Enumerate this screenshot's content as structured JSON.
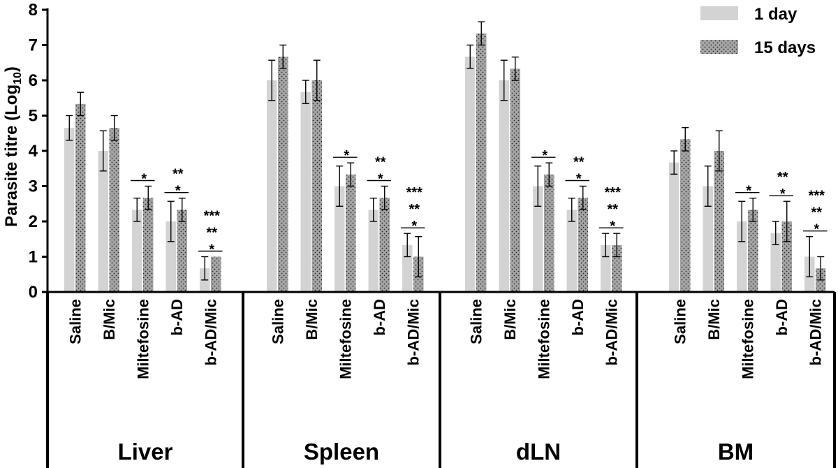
{
  "chart_data": {
    "type": "bar",
    "ylabel": "Parasite titre (Log",
    "ylabel_sub": "10",
    "ylabel_close": ")",
    "ylim": [
      0,
      8
    ],
    "yticks": [
      "0",
      "1",
      "2",
      "3",
      "4",
      "5",
      "6",
      "7",
      "8"
    ],
    "grid": false,
    "legend_position": "top-right",
    "series": [
      {
        "name": "1 day",
        "color": "#d3d3d3",
        "pattern": "solid"
      },
      {
        "name": "15 days",
        "color": "#a6a6a6",
        "pattern": "dotted"
      }
    ],
    "categories": [
      "Saline",
      "B/Mic",
      "Miltefosine",
      "b-AD",
      "b-AD/Mic"
    ],
    "groups": [
      {
        "name": "Liver",
        "bars": [
          {
            "category": "Saline",
            "values": [
              4.65,
              5.33
            ],
            "errors": [
              0.35,
              0.33
            ]
          },
          {
            "category": "B/Mic",
            "values": [
              4.0,
              4.65
            ],
            "errors": [
              0.57,
              0.35
            ]
          },
          {
            "category": "Miltefosine",
            "values": [
              2.33,
              2.67
            ],
            "errors": [
              0.33,
              0.33
            ],
            "stars": [
              "*"
            ]
          },
          {
            "category": "b-AD",
            "values": [
              2.0,
              2.33
            ],
            "errors": [
              0.57,
              0.33
            ],
            "stars": [
              "*",
              "**"
            ]
          },
          {
            "category": "b-AD/Mic",
            "values": [
              0.67,
              1.0
            ],
            "errors": [
              0.33,
              0.0
            ],
            "stars": [
              "*",
              "**",
              "***"
            ]
          }
        ]
      },
      {
        "name": "Spleen",
        "bars": [
          {
            "category": "Saline",
            "values": [
              6.0,
              6.67
            ],
            "errors": [
              0.57,
              0.33
            ]
          },
          {
            "category": "B/Mic",
            "values": [
              5.67,
              6.0
            ],
            "errors": [
              0.33,
              0.57
            ]
          },
          {
            "category": "Miltefosine",
            "values": [
              3.0,
              3.33
            ],
            "errors": [
              0.57,
              0.33
            ],
            "stars": [
              "*"
            ]
          },
          {
            "category": "b-AD",
            "values": [
              2.33,
              2.67
            ],
            "errors": [
              0.33,
              0.33
            ],
            "stars": [
              "*",
              "**"
            ]
          },
          {
            "category": "b-AD/Mic",
            "values": [
              1.33,
              1.0
            ],
            "errors": [
              0.33,
              0.57
            ],
            "stars": [
              "*",
              "**",
              "***"
            ]
          }
        ]
      },
      {
        "name": "dLN",
        "bars": [
          {
            "category": "Saline",
            "values": [
              6.67,
              7.33
            ],
            "errors": [
              0.33,
              0.33
            ]
          },
          {
            "category": "B/Mic",
            "values": [
              6.0,
              6.33
            ],
            "errors": [
              0.57,
              0.33
            ]
          },
          {
            "category": "Miltefosine",
            "values": [
              3.0,
              3.33
            ],
            "errors": [
              0.57,
              0.33
            ],
            "stars": [
              "*"
            ]
          },
          {
            "category": "b-AD",
            "values": [
              2.33,
              2.67
            ],
            "errors": [
              0.33,
              0.33
            ],
            "stars": [
              "*",
              "**"
            ]
          },
          {
            "category": "b-AD/Mic",
            "values": [
              1.33,
              1.33
            ],
            "errors": [
              0.33,
              0.33
            ],
            "stars": [
              "*",
              "**",
              "***"
            ]
          }
        ]
      },
      {
        "name": "BM",
        "bars": [
          {
            "category": "Saline",
            "values": [
              3.67,
              4.33
            ],
            "errors": [
              0.33,
              0.33
            ]
          },
          {
            "category": "B/Mic",
            "values": [
              3.0,
              4.0
            ],
            "errors": [
              0.57,
              0.57
            ]
          },
          {
            "category": "Miltefosine",
            "values": [
              2.0,
              2.33
            ],
            "errors": [
              0.57,
              0.33
            ],
            "stars": [
              "*"
            ]
          },
          {
            "category": "b-AD",
            "values": [
              1.67,
              2.0
            ],
            "errors": [
              0.33,
              0.57
            ],
            "stars": [
              "*",
              "**"
            ]
          },
          {
            "category": "b-AD/Mic",
            "values": [
              1.0,
              0.67
            ],
            "errors": [
              0.57,
              0.33
            ],
            "stars": [
              "*",
              "**",
              "***"
            ]
          }
        ]
      }
    ]
  }
}
